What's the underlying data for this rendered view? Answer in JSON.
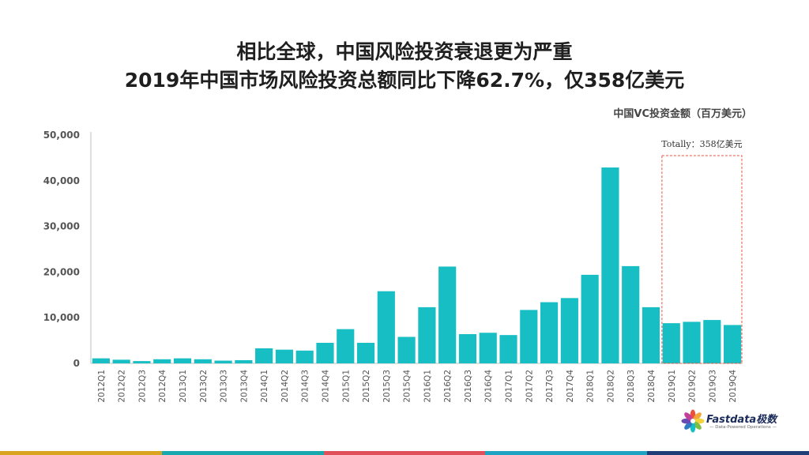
{
  "header": {
    "title_line1": "相比全球，中国风险投资衰退更为严重",
    "title_line2": "2019年中国市场风险投资总额同比下降62.7%，仅358亿美元"
  },
  "chart_data": {
    "type": "bar",
    "title": "",
    "unit_label": "中国VC投资金额（百万美元）",
    "xlabel": "",
    "ylabel": "",
    "ylim": [
      0,
      50000
    ],
    "yticks": [
      "0",
      "10,000",
      "20,000",
      "30,000",
      "40,000",
      "50,000"
    ],
    "grid": false,
    "bar_color": "#17BEC4",
    "categories": [
      "2012Q1",
      "2012Q2",
      "2012Q3",
      "2012Q4",
      "2013Q1",
      "2013Q2",
      "2013Q3",
      "2013Q4",
      "2014Q1",
      "2014Q2",
      "2014Q3",
      "2014Q4",
      "2015Q1",
      "2015Q2",
      "2015Q3",
      "2015Q4",
      "2016Q1",
      "2016Q2",
      "2016Q3",
      "2016Q4",
      "2017Q1",
      "2017Q2",
      "2017Q3",
      "2017Q4",
      "2018Q1",
      "2018Q2",
      "2018Q3",
      "2018Q4",
      "2019Q1",
      "2019Q2",
      "2019Q3",
      "2019Q4"
    ],
    "values": [
      1100,
      800,
      500,
      900,
      1100,
      900,
      600,
      700,
      3300,
      3000,
      2800,
      4500,
      7500,
      4500,
      15800,
      5800,
      12300,
      21200,
      6400,
      6700,
      6200,
      11700,
      13400,
      14300,
      19400,
      42900,
      21300,
      12300,
      8800,
      9100,
      9500,
      8400
    ],
    "annotation": {
      "text": "Totally：358亿美元",
      "range": [
        "2019Q1",
        "2019Q4"
      ],
      "color": "#E8523C"
    }
  },
  "logo": {
    "name": "Fastdata极数",
    "tagline": "— Data-Powered Operations —"
  },
  "colors": {
    "strip": [
      "#D9A521",
      "#17A9AE",
      "#E0505A",
      "#1FA3C2",
      "#1F3E78"
    ]
  }
}
